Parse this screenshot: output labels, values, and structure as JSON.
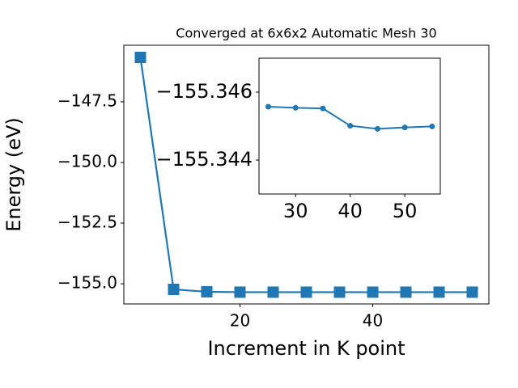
{
  "chart_data": [
    {
      "type": "line",
      "title": "Converged at 6x6x2 Automatic Mesh 30",
      "xlabel": "Increment in K point",
      "ylabel": "Energy (eV)",
      "x": [
        5,
        10,
        15,
        20,
        25,
        30,
        35,
        40,
        45,
        50,
        55
      ],
      "values": [
        -145.67,
        -155.23,
        -155.33,
        -155.345,
        -155.3455,
        -155.3455,
        -155.3455,
        -155.345,
        -155.345,
        -155.345,
        -155.345
      ],
      "color": "#1f77b4",
      "marker": "square",
      "xlim": [
        2.5,
        57.5
      ],
      "xticks": [
        20,
        40
      ],
      "ylim": [
        -155.83,
        -145.17
      ],
      "yticks": [
        {
          "value": -147.5,
          "label": "−147.5"
        },
        {
          "value": -150,
          "label": "−150.0"
        },
        {
          "value": -152.5,
          "label": "−152.5"
        },
        {
          "value": -155,
          "label": "−155.0"
        }
      ]
    },
    {
      "type": "line",
      "x": [
        25,
        30,
        35,
        40,
        45,
        50,
        55
      ],
      "values": [
        -155.34557,
        -155.34554,
        -155.34552,
        -155.34501,
        -155.34492,
        -155.34496,
        -155.34499
      ],
      "color": "#1f77b4",
      "marker": "circle",
      "xlim": [
        23.3,
        56.5
      ],
      "xticks": [
        30,
        40,
        50
      ],
      "ylim": [
        -155.343,
        -155.347
      ],
      "yticks": [
        {
          "value": -155.346,
          "label": "−155.346"
        },
        {
          "value": -155.344,
          "label": "−155.344"
        }
      ]
    }
  ]
}
